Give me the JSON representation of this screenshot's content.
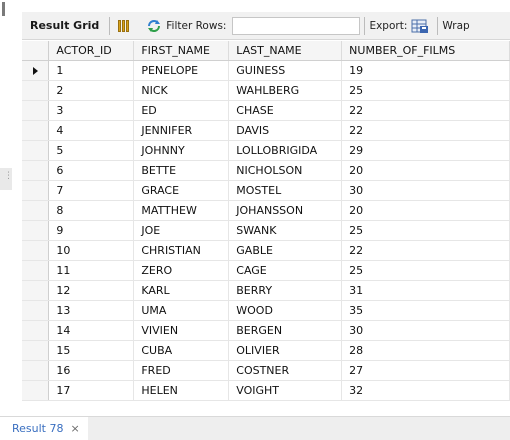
{
  "toolbar": {
    "result_grid_label": "Result Grid",
    "filter_rows_label": "Filter Rows:",
    "filter_value": "",
    "export_label": "Export:",
    "wrap_label": "Wrap"
  },
  "grid": {
    "columns": [
      "ACTOR_ID",
      "FIRST_NAME",
      "LAST_NAME",
      "NUMBER_OF_FILMS"
    ],
    "rows": [
      [
        "1",
        "PENELOPE",
        "GUINESS",
        "19"
      ],
      [
        "2",
        "NICK",
        "WAHLBERG",
        "25"
      ],
      [
        "3",
        "ED",
        "CHASE",
        "22"
      ],
      [
        "4",
        "JENNIFER",
        "DAVIS",
        "22"
      ],
      [
        "5",
        "JOHNNY",
        "LOLLOBRIGIDA",
        "29"
      ],
      [
        "6",
        "BETTE",
        "NICHOLSON",
        "20"
      ],
      [
        "7",
        "GRACE",
        "MOSTEL",
        "30"
      ],
      [
        "8",
        "MATTHEW",
        "JOHANSSON",
        "20"
      ],
      [
        "9",
        "JOE",
        "SWANK",
        "25"
      ],
      [
        "10",
        "CHRISTIAN",
        "GABLE",
        "22"
      ],
      [
        "11",
        "ZERO",
        "CAGE",
        "25"
      ],
      [
        "12",
        "KARL",
        "BERRY",
        "31"
      ],
      [
        "13",
        "UMA",
        "WOOD",
        "35"
      ],
      [
        "14",
        "VIVIEN",
        "BERGEN",
        "30"
      ],
      [
        "15",
        "CUBA",
        "OLIVIER",
        "28"
      ],
      [
        "16",
        "FRED",
        "COSTNER",
        "27"
      ],
      [
        "17",
        "HELEN",
        "VOIGHT",
        "32"
      ]
    ]
  },
  "tabs": [
    {
      "label": "Result 78",
      "close_glyph": "×"
    }
  ]
}
